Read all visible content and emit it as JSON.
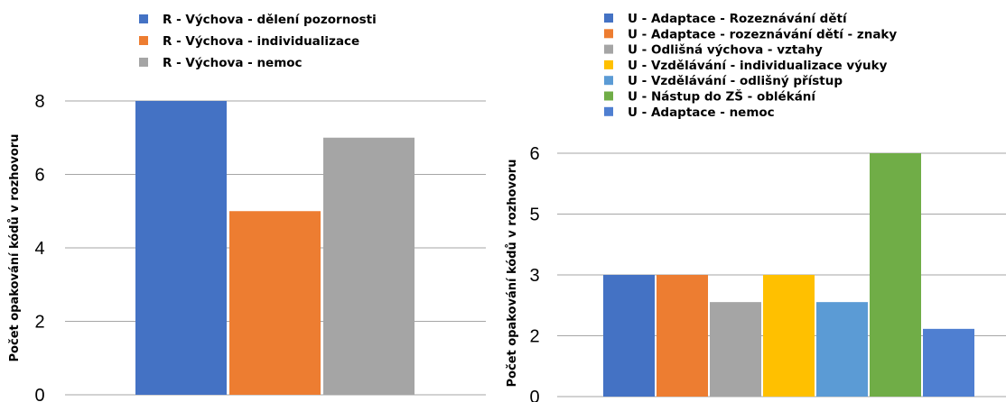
{
  "chart_data": [
    {
      "type": "bar",
      "title": "",
      "xlabel": "",
      "ylabel": "Počet opakování kódů v rozhovoru",
      "ylim": [
        0,
        8
      ],
      "yticks": [
        "0",
        "2",
        "4",
        "6",
        "8"
      ],
      "grid": true,
      "legend_position": "top",
      "series": [
        {
          "name": "R - Výchova - dělení pozornosti",
          "values": [
            8
          ],
          "color": "#4472C4"
        },
        {
          "name": "R - Výchova - individualizace",
          "values": [
            5
          ],
          "color": "#ED7D31"
        },
        {
          "name": "R - Výchova - nemoc",
          "values": [
            7
          ],
          "color": "#A5A5A5"
        }
      ]
    },
    {
      "type": "bar",
      "title": "",
      "xlabel": "",
      "ylabel": "Počet opakování kódů v rozhovoru",
      "yticks": [
        "0",
        "2",
        "3",
        "5",
        "6"
      ],
      "ylim": [
        0,
        6
      ],
      "grid": true,
      "legend_position": "top",
      "series": [
        {
          "name": "U - Adaptace - Rozeznávání dětí",
          "values": [
            3
          ],
          "color": "#4472C4"
        },
        {
          "name": "U - Adaptace - rozeznávání dětí - znaky",
          "values": [
            3
          ],
          "color": "#ED7D31"
        },
        {
          "name": "U - Odlišná výchova - vztahy",
          "values": [
            2.33
          ],
          "color": "#A5A5A5"
        },
        {
          "name": "U - Vzdělávání - individualizace výuky",
          "values": [
            3
          ],
          "color": "#FFC000"
        },
        {
          "name": "U - Vzdělávání - odlišný přístup",
          "values": [
            2.33
          ],
          "color": "#5B9BD5"
        },
        {
          "name": "U - Nástup do ZŠ - oblékání",
          "values": [
            6
          ],
          "color": "#70AD47"
        },
        {
          "name": "U - Adaptace - nemoc",
          "values": [
            1.67
          ],
          "color": "#4F7FD1"
        }
      ]
    }
  ]
}
